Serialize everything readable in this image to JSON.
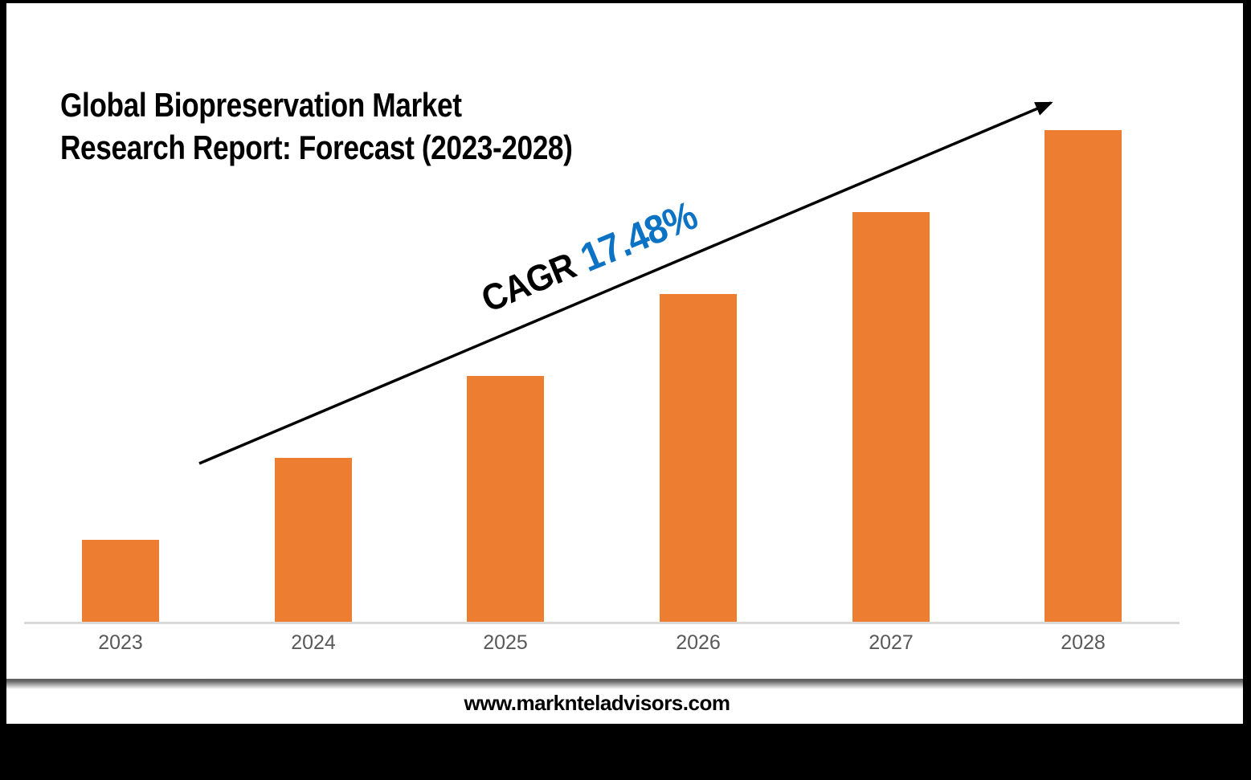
{
  "title": {
    "line1": "Global Biopreservation Market",
    "line2": "Research Report: Forecast (2023-2028)"
  },
  "annotation": {
    "label": "CAGR",
    "value": "17.48%"
  },
  "footer": {
    "website": "www.marknteladvisors.com"
  },
  "colors": {
    "bar_orange": "#ED7D31",
    "annotation_blue": "#0B72C4",
    "axis_label_gray": "#595959",
    "axis_line_gray": "#D9D9D9",
    "frame_black": "#000000",
    "background_white": "#FFFFFF"
  },
  "chart_data": {
    "type": "bar",
    "title": "Global Biopreservation Market Research Report: Forecast (2023-2028)",
    "categories": [
      "2023",
      "2024",
      "2025",
      "2026",
      "2027",
      "2028"
    ],
    "values": [
      1,
      2,
      3,
      4,
      5,
      6
    ],
    "values_note": "no numeric value axis shown; bars grow linearly in equal steps (relative units)",
    "xlabel": "",
    "ylabel": "",
    "ylim": [
      0,
      6.2
    ],
    "grid": false,
    "legend": false,
    "bar_color": "#ED7D31",
    "annotations": [
      "CAGR 17.48%"
    ],
    "trend_arrow": {
      "direction": "up-right",
      "color": "#000000"
    }
  }
}
